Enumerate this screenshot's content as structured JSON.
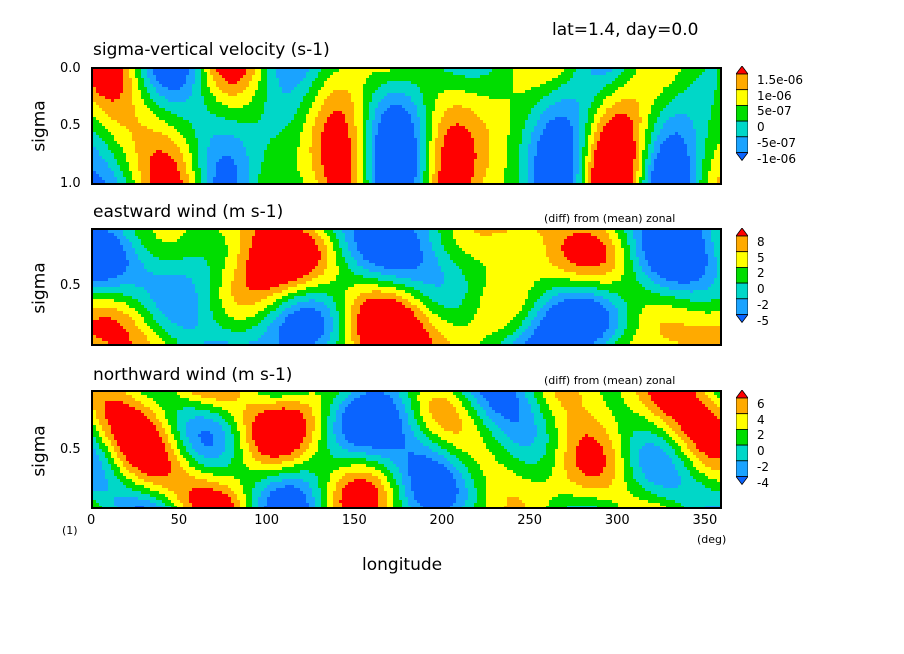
{
  "header": {
    "title_right": "lat=1.4, day=0.0"
  },
  "palette": [
    "#0a64ff",
    "#1aa3ff",
    "#00d7c8",
    "#00dd00",
    "#ffff00",
    "#ffaa00",
    "#ff0000"
  ],
  "chart_data": [
    {
      "type": "heatmap",
      "title": "sigma-vertical velocity (s-1)",
      "subtitle": "",
      "ylabel": "sigma",
      "xlim": [
        0,
        360
      ],
      "ylim": [
        0.0,
        1.0
      ],
      "yticks": [
        "0.0",
        "0.5",
        "1.0"
      ],
      "colorbar": [
        "1.5e-06",
        "1e-06",
        "5e-07",
        "0",
        "-5e-07",
        "-1e-06"
      ]
    },
    {
      "type": "heatmap",
      "title": "eastward wind (m s-1)",
      "subtitle": "(diff) from (mean) zonal",
      "ylabel": "sigma",
      "xlim": [
        0,
        360
      ],
      "yticks": [
        "0.5"
      ],
      "colorbar": [
        "8",
        "5",
        "2",
        "0",
        "-2",
        "-5"
      ]
    },
    {
      "type": "heatmap",
      "title": "northward wind (m s-1)",
      "subtitle": "(diff) from (mean) zonal",
      "ylabel": "sigma",
      "xlim": [
        0,
        360
      ],
      "yticks": [
        "0.5"
      ],
      "colorbar": [
        "6",
        "4",
        "2",
        "0",
        "-2",
        "-4"
      ]
    }
  ],
  "xaxis": {
    "label": "longitude",
    "ticks": [
      "0",
      "50",
      "100",
      "150",
      "200",
      "250",
      "300",
      "350"
    ],
    "unit": "(deg)",
    "corner": "(1)"
  }
}
